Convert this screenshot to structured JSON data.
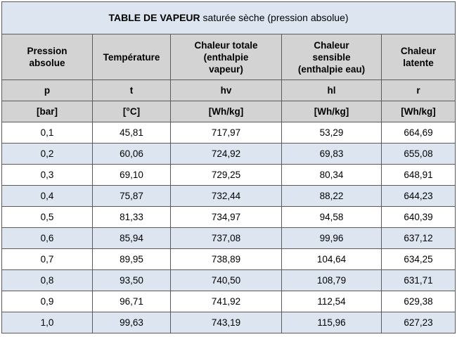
{
  "table": {
    "title_bold": "TABLE DE VAPEUR",
    "title_rest": " saturée sèche (pression absolue)",
    "columns": [
      {
        "name_lines": [
          "Pression",
          "absolue"
        ],
        "symbol": "p",
        "unit": "[bar]"
      },
      {
        "name_lines": [
          "Température"
        ],
        "symbol": "t",
        "unit": "[°C]"
      },
      {
        "name_lines": [
          "Chaleur totale",
          "(enthalpie",
          "vapeur)"
        ],
        "symbol": "hv",
        "unit": "[Wh/kg]"
      },
      {
        "name_lines": [
          "Chaleur",
          "sensible",
          "(enthalpie eau)"
        ],
        "symbol": "hl",
        "unit": "[Wh/kg]"
      },
      {
        "name_lines": [
          "Chaleur",
          "latente"
        ],
        "symbol": "r",
        "unit": "[Wh/kg]"
      }
    ],
    "rows": [
      [
        "0,1",
        "45,81",
        "717,97",
        "53,29",
        "664,69"
      ],
      [
        "0,2",
        "60,06",
        "724,92",
        "69,83",
        "655,08"
      ],
      [
        "0,3",
        "69,10",
        "729,25",
        "80,34",
        "648,91"
      ],
      [
        "0,4",
        "75,87",
        "732,44",
        "88,22",
        "644,23"
      ],
      [
        "0,5",
        "81,33",
        "734,97",
        "94,58",
        "640,39"
      ],
      [
        "0,6",
        "85,94",
        "737,08",
        "99,96",
        "637,12"
      ],
      [
        "0,7",
        "89,95",
        "738,89",
        "104,64",
        "634,25"
      ],
      [
        "0,8",
        "93,50",
        "740,50",
        "108,79",
        "631,71"
      ],
      [
        "0,9",
        "96,71",
        "741,92",
        "112,54",
        "629,38"
      ],
      [
        "1,0",
        "99,63",
        "743,19",
        "115,96",
        "627,23"
      ]
    ]
  }
}
